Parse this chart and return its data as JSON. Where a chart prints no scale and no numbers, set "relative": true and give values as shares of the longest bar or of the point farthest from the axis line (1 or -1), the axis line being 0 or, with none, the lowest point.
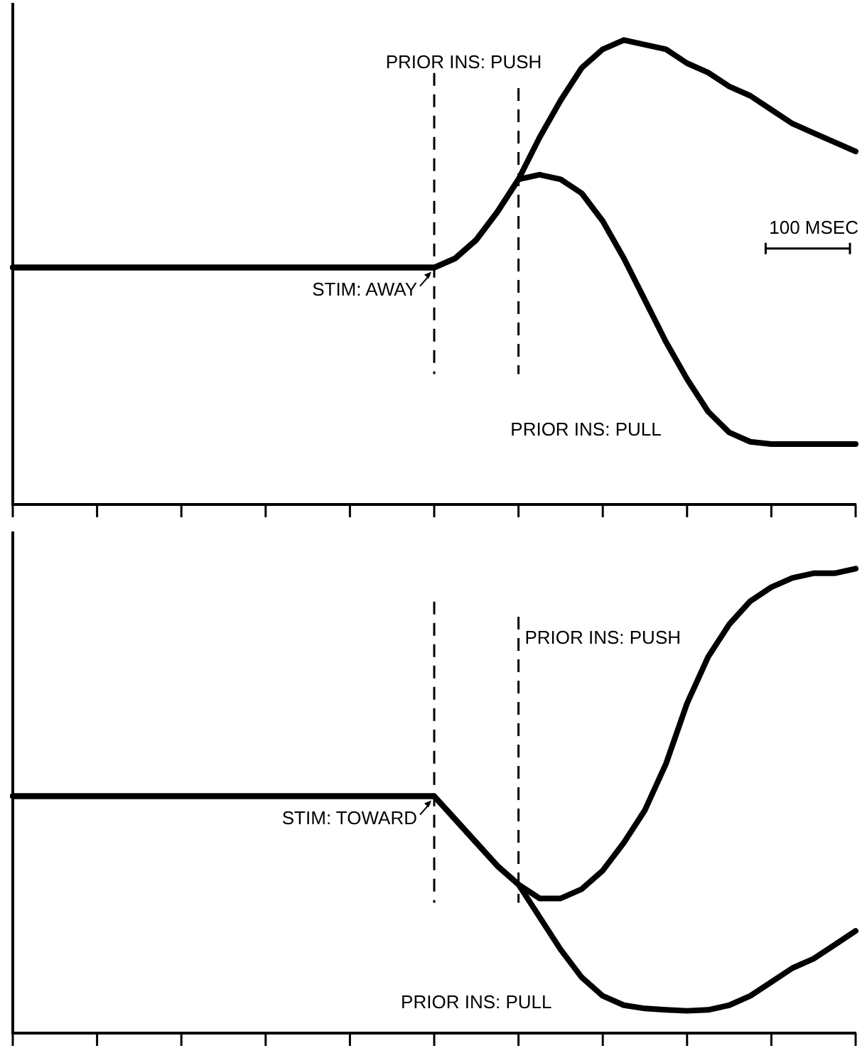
{
  "chart_data": [
    {
      "type": "line",
      "relative": true,
      "categories": [
        null,
        null,
        null,
        null,
        null,
        null,
        null,
        null,
        null,
        null,
        null,
        null,
        null,
        null,
        null,
        null,
        null,
        null,
        null,
        null,
        null,
        null,
        null,
        null,
        null,
        null,
        null,
        null,
        null,
        null,
        null,
        null,
        null,
        null,
        null,
        null,
        null,
        null,
        null,
        null,
        null
      ],
      "legend": false,
      "grid": false,
      "marker": "none",
      "line_style": "solid",
      "series": [
        {
          "name": "PRIOR INS: PUSH",
          "color": "#000000",
          "values": [
            0.51,
            0.51,
            0.51,
            0.51,
            0.51,
            0.51,
            0.51,
            0.51,
            0.51,
            0.51,
            0.51,
            0.51,
            0.51,
            0.51,
            0.51,
            0.51,
            0.51,
            0.51,
            0.51,
            0.51,
            0.51,
            0.53,
            0.57,
            0.63,
            0.7,
            0.79,
            0.87,
            0.94,
            0.98,
            1,
            0.99,
            0.98,
            0.95,
            0.93,
            0.9,
            0.88,
            0.85,
            0.82,
            0.8,
            0.78,
            0.76
          ]
        },
        {
          "name": "PRIOR INS: PULL",
          "color": "#000000",
          "values": [
            0.51,
            0.51,
            0.51,
            0.51,
            0.51,
            0.51,
            0.51,
            0.51,
            0.51,
            0.51,
            0.51,
            0.51,
            0.51,
            0.51,
            0.51,
            0.51,
            0.51,
            0.51,
            0.51,
            0.51,
            0.51,
            0.53,
            0.57,
            0.63,
            0.7,
            0.71,
            0.7,
            0.67,
            0.61,
            0.53,
            0.44,
            0.35,
            0.27,
            0.2,
            0.155,
            0.135,
            0.13,
            0.13,
            0.13,
            0.13,
            0.13
          ]
        }
      ],
      "annotations": [
        "STIM: AWAY",
        "100 MSEC"
      ]
    },
    {
      "type": "line",
      "relative": true,
      "categories": [
        null,
        null,
        null,
        null,
        null,
        null,
        null,
        null,
        null,
        null,
        null,
        null,
        null,
        null,
        null,
        null,
        null,
        null,
        null,
        null,
        null,
        null,
        null,
        null,
        null,
        null,
        null,
        null,
        null,
        null,
        null,
        null,
        null,
        null,
        null,
        null,
        null,
        null,
        null,
        null,
        null
      ],
      "legend": false,
      "grid": false,
      "marker": "none",
      "line_style": "solid",
      "series": [
        {
          "name": "PRIOR INS: PUSH",
          "color": "#000000",
          "values": [
            0.51,
            0.51,
            0.51,
            0.51,
            0.51,
            0.51,
            0.51,
            0.51,
            0.51,
            0.51,
            0.51,
            0.51,
            0.51,
            0.51,
            0.51,
            0.51,
            0.51,
            0.51,
            0.51,
            0.51,
            0.51,
            0.46,
            0.41,
            0.36,
            0.32,
            0.29,
            0.29,
            0.31,
            0.35,
            0.41,
            0.48,
            0.58,
            0.71,
            0.81,
            0.88,
            0.93,
            0.96,
            0.98,
            0.99,
            0.99,
            1
          ]
        },
        {
          "name": "PRIOR INS: PULL",
          "color": "#000000",
          "values": [
            0.51,
            0.51,
            0.51,
            0.51,
            0.51,
            0.51,
            0.51,
            0.51,
            0.51,
            0.51,
            0.51,
            0.51,
            0.51,
            0.51,
            0.51,
            0.51,
            0.51,
            0.51,
            0.51,
            0.51,
            0.51,
            0.46,
            0.41,
            0.36,
            0.32,
            0.25,
            0.18,
            0.12,
            0.08,
            0.06,
            0.053,
            0.05,
            0.048,
            0.05,
            0.06,
            0.08,
            0.11,
            0.14,
            0.16,
            0.19,
            0.22
          ]
        }
      ],
      "annotations": [
        "STIM: TOWARD"
      ]
    }
  ]
}
